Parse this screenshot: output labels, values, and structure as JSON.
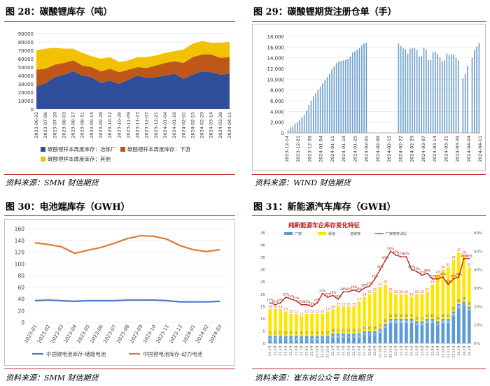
{
  "panels": [
    {
      "title": "图 28：碳酸锂库存（吨）",
      "source": "资料来源：SMM  财信期货"
    },
    {
      "title": "图 29：碳酸锂期货注册仓单（手）",
      "source": "资料来源：WIND  财信期货"
    },
    {
      "title": "图 30：电池端库存（GWH）",
      "source": "资料来源：SMM  财信期货"
    },
    {
      "title": "图 31：新能源汽车库存（GWH）",
      "source": "资料来源：崔东树公众号  财信期货"
    }
  ],
  "chart_data": [
    {
      "type": "area",
      "title": "",
      "ylim": [
        0,
        90000
      ],
      "yticks": [
        "0",
        "10000",
        "20000",
        "30000",
        "40000",
        "50000",
        "60000",
        "70000",
        "80000",
        "90000"
      ],
      "x": [
        "2023-06-22",
        "2023-07-06",
        "2023-07-20",
        "2023-08-03",
        "2023-08-17",
        "2023-08-31",
        "2023-09-14",
        "2023-09-28",
        "2023-10-12",
        "2023-10-26",
        "2023-11-09",
        "2023-11-23",
        "2023-12-07",
        "2023-12-21",
        "2024-01-04",
        "2024-01-18",
        "2024-02-01",
        "2024-02-15",
        "2024-02-29",
        "2024-03-14",
        "2024-03-28",
        "2024-04-11"
      ],
      "series": [
        {
          "name": "碳酸锂样本周度库存：冶炼厂",
          "color": "#2f4f9a",
          "values": [
            27000,
            31000,
            38000,
            41000,
            45000,
            40000,
            38000,
            31000,
            34000,
            30000,
            35000,
            40000,
            37000,
            38000,
            40000,
            42000,
            36000,
            41000,
            45000,
            44000,
            41000,
            42000
          ]
        },
        {
          "name": "碳酸锂样本周度库存：下游",
          "color": "#c0571a",
          "values": [
            20000,
            17000,
            15000,
            14000,
            13000,
            12000,
            12000,
            14000,
            14000,
            14000,
            12000,
            10000,
            12000,
            14000,
            15000,
            15000,
            19000,
            21000,
            20000,
            21000,
            20000,
            20000
          ]
        },
        {
          "name": "碳酸锂样本周度库存：其他",
          "color": "#f2c100",
          "values": [
            23000,
            24000,
            20000,
            17000,
            14000,
            15000,
            13000,
            15000,
            14000,
            12000,
            11000,
            12000,
            13000,
            12000,
            12000,
            12000,
            16000,
            16000,
            16000,
            14000,
            18000,
            18000
          ]
        }
      ]
    },
    {
      "type": "bar",
      "title": "",
      "ylim": [
        0,
        18000
      ],
      "yticks": [
        "0",
        "2,000",
        "4,000",
        "6,000",
        "8,000",
        "10,000",
        "12,000",
        "14,000",
        "16,000",
        "18,000"
      ],
      "xticks": [
        "2023-12-14",
        "2023-12-21",
        "2023-12-28",
        "2024-01-04",
        "2024-01-11",
        "2024-01-18",
        "2024-01-25",
        "2024-02-01",
        "2024-02-08",
        "2024-02-15",
        "2024-02-22",
        "2024-02-29",
        "2024-03-07",
        "2024-03-14",
        "2024-03-21",
        "2024-03-28",
        "2024-04-04",
        "2024-04-11"
      ],
      "color": "#6f9fd0",
      "values": [
        500,
        1000,
        1200,
        1700,
        2000,
        2400,
        2900,
        3400,
        4200,
        5200,
        6000,
        6800,
        7400,
        8000,
        8600,
        9200,
        9800,
        10400,
        11000,
        11800,
        12400,
        13000,
        13300,
        13400,
        13500,
        13600,
        13800,
        14200,
        15000,
        15200,
        15500,
        15800,
        16300,
        16700,
        16800,
        0,
        0,
        0,
        0,
        0,
        0,
        0,
        0,
        0,
        0,
        0,
        0,
        0,
        16700,
        16200,
        15800,
        15600,
        14800,
        15700,
        15800,
        15800,
        15500,
        14200,
        14300,
        15900,
        15500,
        13600,
        13600,
        15000,
        15200,
        14700,
        14100,
        13400,
        13500,
        14800,
        14500,
        14600,
        14600,
        14000,
        13500,
        0,
        10200,
        11000,
        12500,
        0,
        14000,
        15500,
        16100,
        16800
      ]
    },
    {
      "type": "line",
      "title": "",
      "ylim": [
        0,
        160
      ],
      "yticks": [
        "0",
        "20",
        "40",
        "60",
        "80",
        "100",
        "120",
        "140",
        "160"
      ],
      "x": [
        "2023-01",
        "2023-02",
        "2023-03",
        "2023-04",
        "2023-05",
        "2023-06",
        "2023-07",
        "2023-08",
        "2023-09",
        "2023-10",
        "2023-11",
        "2023-12",
        "2024-01",
        "2024-02",
        "2024-03"
      ],
      "series": [
        {
          "name": "中国锂电池库存-储能电池",
          "color": "#4a78c4",
          "values": [
            37,
            38,
            37,
            36,
            37,
            37,
            37,
            38,
            38,
            38,
            37,
            35,
            35,
            35,
            36
          ]
        },
        {
          "name": "中国锂电池库存-动力电池",
          "color": "#e07b30",
          "values": [
            136,
            133,
            129,
            118,
            123,
            128,
            135,
            143,
            148,
            147,
            142,
            131,
            124,
            121,
            124
          ]
        }
      ]
    },
    {
      "type": "bar",
      "title": "纯新能源车企库存变化特征",
      "ylim": [
        0,
        45
      ],
      "y2lim": [
        0,
        60
      ],
      "yticks": [
        "0",
        "5",
        "10",
        "15",
        "20",
        "25",
        "30",
        "35",
        "40",
        "45"
      ],
      "y2ticks": [
        "0%",
        "10%",
        "20%",
        "30%",
        "40%",
        "50%",
        "60%"
      ],
      "legend": [
        "厂家",
        "渠道",
        "总库存",
        "厂家库存占比"
      ],
      "x": [
        "21.1月",
        "21.2月",
        "21.3月",
        "21.4月",
        "21.5月",
        "21.6月",
        "21.7月",
        "21.8月",
        "21.9月",
        "21.10月",
        "21.11月",
        "21.12月",
        "22.1月",
        "22.2月",
        "22.3月",
        "22.4月",
        "22.5月",
        "22.6月",
        "22.7月",
        "22.8月",
        "22.9月",
        "22.10月",
        "22.11月",
        "22.12月",
        "23.1月",
        "23.2月",
        "23.3月",
        "23.4月",
        "23.5月",
        "23.6月",
        "23.7月",
        "23.8月",
        "23.9月",
        "23.10月",
        "23.11月",
        "23.12月",
        "24.1月",
        "24.2月",
        "24.3月"
      ],
      "series": [
        {
          "name": "厂家",
          "color": "#5b9bd5",
          "values": [
            3,
            3,
            3,
            3,
            3,
            3,
            3,
            3,
            3,
            3,
            3,
            3,
            4,
            4,
            4,
            4,
            4,
            4,
            5,
            5,
            5,
            6,
            8,
            10,
            10,
            10,
            10,
            10,
            9,
            9,
            10,
            10,
            9,
            10,
            10,
            13,
            16,
            17,
            15
          ]
        },
        {
          "name": "渠道",
          "color": "#ffe600",
          "values": [
            11,
            11,
            11,
            10,
            9,
            9,
            8,
            9,
            9,
            9,
            9,
            10,
            10,
            11,
            11,
            11,
            11,
            13,
            14,
            15,
            16,
            17,
            16,
            11,
            10,
            10,
            10,
            9,
            11,
            11,
            11,
            14,
            19,
            20,
            21,
            21,
            21,
            19,
            16
          ]
        },
        {
          "name": "总库存",
          "color": "#d6443a",
          "values": [
            14,
            14,
            14,
            13,
            12,
            12,
            11,
            12,
            12,
            12,
            12,
            13,
            14,
            15,
            15,
            15,
            15,
            17,
            19,
            20,
            21,
            23,
            24,
            21,
            20,
            20,
            20,
            19,
            20,
            20,
            21,
            24,
            28,
            30,
            31,
            34,
            37,
            36,
            31
          ]
        },
        {
          "name": "厂家库存占比",
          "color": "#c0191c",
          "values": [
            22,
            21,
            22,
            25,
            24,
            23,
            21,
            21,
            20,
            22,
            27,
            25,
            26,
            24,
            28,
            28,
            29,
            28,
            30,
            31,
            35,
            40,
            45,
            50,
            48,
            47,
            47,
            40,
            39,
            37,
            38,
            35,
            35,
            36,
            32,
            35,
            36,
            46,
            46
          ]
        }
      ]
    }
  ]
}
